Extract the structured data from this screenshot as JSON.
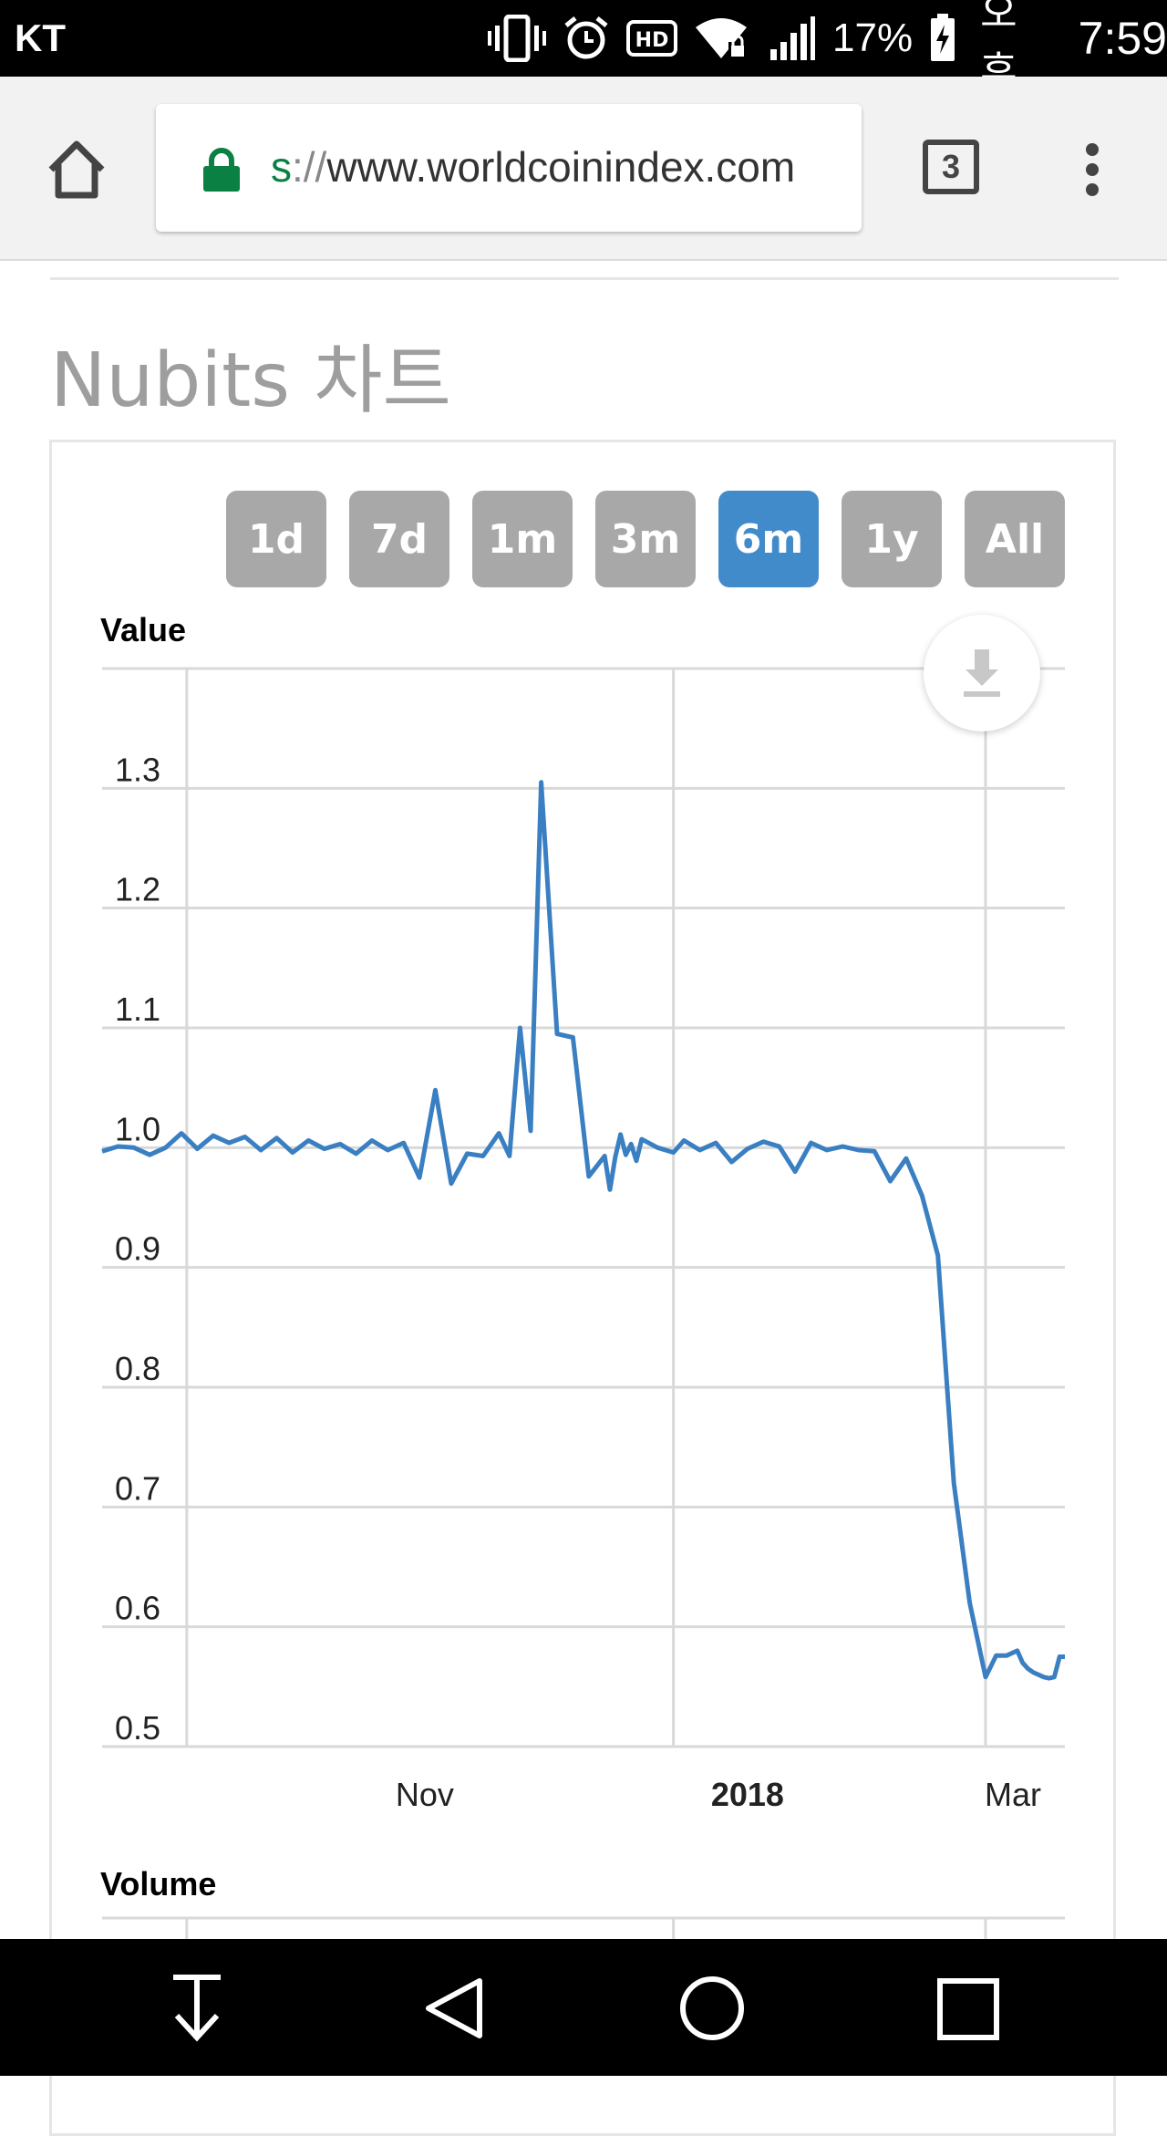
{
  "status_bar": {
    "carrier": "KT",
    "battery_percent": "17%",
    "ampm": "오후",
    "time": "7:59",
    "icons": [
      "vibrate-icon",
      "alarm-icon",
      "hd-icon",
      "wifi-lock-icon",
      "signal-icon",
      "battery-charging-icon"
    ]
  },
  "browser": {
    "url_scheme": "s",
    "url_sep": "://",
    "url_host": "www.worldcoinindex.com",
    "tab_count": "3"
  },
  "page": {
    "title": "Nubits 차트"
  },
  "range_buttons": [
    {
      "label": "1d",
      "active": false
    },
    {
      "label": "7d",
      "active": false
    },
    {
      "label": "1m",
      "active": false
    },
    {
      "label": "3m",
      "active": false
    },
    {
      "label": "6m",
      "active": true
    },
    {
      "label": "1y",
      "active": false
    },
    {
      "label": "All",
      "active": false
    }
  ],
  "colors": {
    "series": "#3a7fc1",
    "active_button": "#428bca",
    "inactive_button": "#a8a8a8"
  },
  "chart_data": {
    "type": "line",
    "title": "",
    "panels": [
      {
        "label": "Value"
      },
      {
        "label": "Volume"
      }
    ],
    "ylabel": "Value",
    "ylim": [
      0.5,
      1.4
    ],
    "yticks": [
      "1.3",
      "1.2",
      "1.1",
      "1.0",
      "0.9",
      "0.8",
      "0.7",
      "0.6",
      "0.5"
    ],
    "xticks": [
      {
        "label": "Nov",
        "bold": false
      },
      {
        "label": "2018",
        "bold": true
      },
      {
        "label": "Mar",
        "bold": false
      }
    ],
    "xlim": [
      "2017-09-15",
      "2018-03-16"
    ],
    "grid": true,
    "series": [
      {
        "x": [
          "2017-09-15",
          "2017-09-18",
          "2017-09-21",
          "2017-09-24",
          "2017-09-27",
          "2017-09-30",
          "2017-10-03",
          "2017-10-06",
          "2017-10-09",
          "2017-10-12",
          "2017-10-15",
          "2017-10-18",
          "2017-10-21",
          "2017-10-24",
          "2017-10-27",
          "2017-10-30",
          "2017-11-02",
          "2017-11-05",
          "2017-11-08",
          "2017-11-11",
          "2017-11-14",
          "2017-11-17",
          "2017-11-20",
          "2017-11-23",
          "2017-11-26",
          "2017-11-29",
          "2017-12-01",
          "2017-12-03",
          "2017-12-05",
          "2017-12-07",
          "2017-12-10",
          "2017-12-13",
          "2017-12-16",
          "2017-12-19",
          "2017-12-20",
          "2017-12-21",
          "2017-12-22",
          "2017-12-23",
          "2017-12-24",
          "2017-12-25",
          "2017-12-26",
          "2017-12-29",
          "2018-01-01",
          "2018-01-03",
          "2018-01-06",
          "2018-01-09",
          "2018-01-12",
          "2018-01-15",
          "2018-01-18",
          "2018-01-21",
          "2018-01-24",
          "2018-01-27",
          "2018-01-30",
          "2018-02-02",
          "2018-02-05",
          "2018-02-08",
          "2018-02-11",
          "2018-02-14",
          "2018-02-17",
          "2018-02-20",
          "2018-02-23",
          "2018-02-26",
          "2018-03-01",
          "2018-03-03",
          "2018-03-05",
          "2018-03-07",
          "2018-03-08",
          "2018-03-09",
          "2018-03-10",
          "2018-03-11",
          "2018-03-12",
          "2018-03-13",
          "2018-03-14",
          "2018-03-15",
          "2018-03-16"
        ],
        "values": [
          0.997,
          1.001,
          1.0,
          0.994,
          1.0,
          1.012,
          0.999,
          1.01,
          1.004,
          1.009,
          0.998,
          1.008,
          0.996,
          1.006,
          0.999,
          1.003,
          0.995,
          1.006,
          0.998,
          1.004,
          0.975,
          1.048,
          0.97,
          0.995,
          0.993,
          1.012,
          0.993,
          1.1,
          1.014,
          1.305,
          1.095,
          1.092,
          0.976,
          0.993,
          0.965,
          0.992,
          1.011,
          0.994,
          1.003,
          0.989,
          1.007,
          1.0,
          0.996,
          1.006,
          0.998,
          1.004,
          0.988,
          0.999,
          1.005,
          1.001,
          0.98,
          1.004,
          0.998,
          1.001,
          0.998,
          0.997,
          0.972,
          0.991,
          0.96,
          0.91,
          0.72,
          0.62,
          0.558,
          0.576,
          0.576,
          0.58,
          0.57,
          0.565,
          0.562,
          0.56,
          0.558,
          0.557,
          0.558,
          0.575,
          0.575
        ]
      }
    ]
  }
}
